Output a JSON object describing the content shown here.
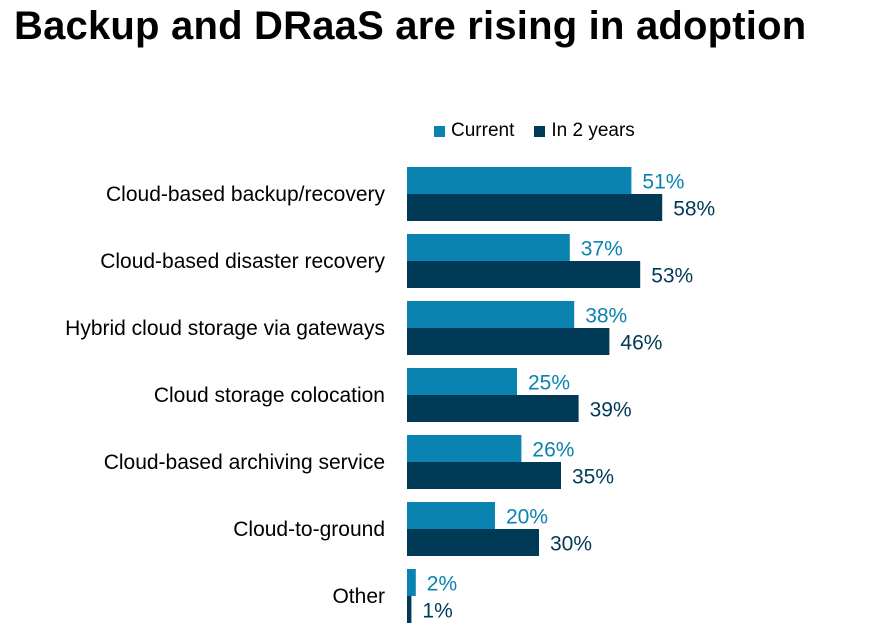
{
  "title": "Backup and DRaaS are rising in adoption",
  "chart_data": {
    "type": "bar",
    "orientation": "horizontal",
    "categories": [
      "Cloud-based backup/recovery",
      "Cloud-based disaster recovery",
      "Hybrid cloud storage via gateways",
      "Cloud storage colocation",
      "Cloud-based archiving service",
      "Cloud-to-ground",
      "Other"
    ],
    "series": [
      {
        "name": "Current",
        "color": "#0a83b0",
        "label_color": "#0a83b0",
        "values": [
          51,
          37,
          38,
          25,
          26,
          20,
          2
        ],
        "labels": [
          "51%",
          "37%",
          "38%",
          "25%",
          "26%",
          "20%",
          "2%"
        ]
      },
      {
        "name": "In 2 years",
        "color": "#003a56",
        "label_color": "#003a56",
        "values": [
          58,
          53,
          46,
          39,
          35,
          30,
          1
        ],
        "labels": [
          "58%",
          "53%",
          "46%",
          "39%",
          "35%",
          "30%",
          "1%"
        ]
      }
    ],
    "value_suffix": "%",
    "xlim": [
      0,
      100
    ],
    "grid": false,
    "legend": "top"
  }
}
